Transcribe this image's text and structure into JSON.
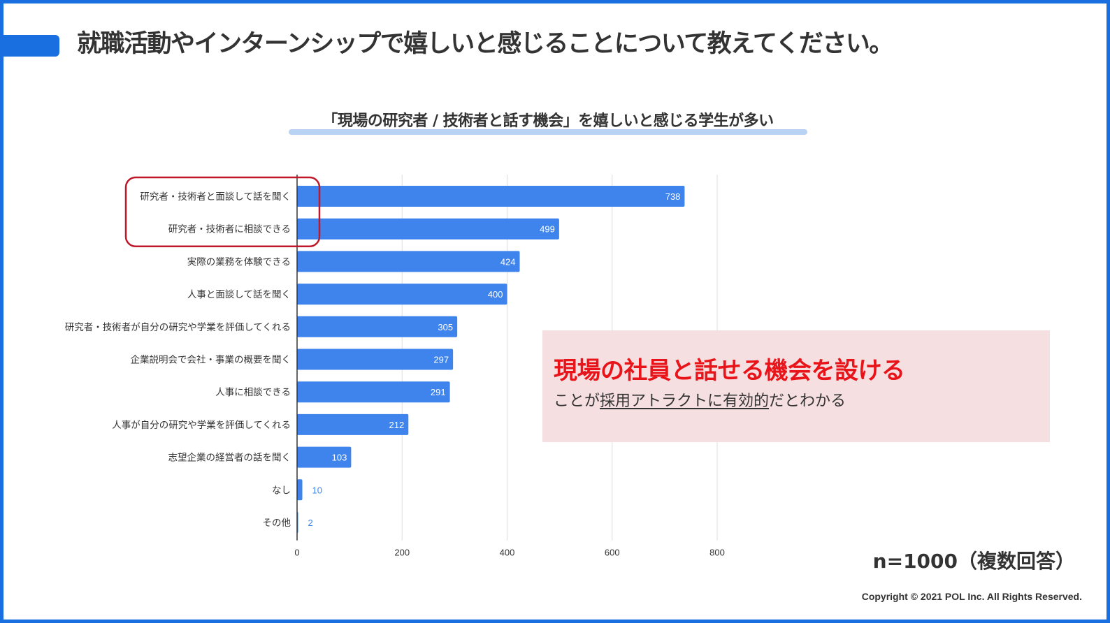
{
  "page": {
    "title": "就職活動やインターンシップで嬉しいと感じることについて教えてください。",
    "sample_size": "n=1000（複数回答）",
    "copyright": "Copyright © 2021 POL Inc. All Rights Reserved."
  },
  "callout": {
    "headline": "現場の社員と話せる機会を設ける",
    "sub_prefix": "ことが",
    "sub_underlined": "採用アトラクトに有効的",
    "sub_suffix": "だとわかる"
  },
  "colors": {
    "accent": "#1a6fe0",
    "bar": "#3f84ec",
    "highlight_box": "#c0182a",
    "callout_bg": "#f6dfe0",
    "callout_text": "#e8141a"
  },
  "chart_data": {
    "type": "bar",
    "orientation": "horizontal",
    "title": "「現場の研究者 / 技術者と話す機会」を嬉しいと感じる学生が多い",
    "categories": [
      "研究者・技術者と面談して話を聞く",
      "研究者・技術者に相談できる",
      "実際の業務を体験できる",
      "人事と面談して話を聞く",
      "研究者・技術者が自分の研究や学業を評価してくれる",
      "企業説明会で会社・事業の概要を聞く",
      "人事に相談できる",
      "人事が自分の研究や学業を評価してくれる",
      "志望企業の経営者の話を聞く",
      "なし",
      "その他"
    ],
    "values": [
      738,
      499,
      424,
      400,
      305,
      297,
      291,
      212,
      103,
      10,
      2
    ],
    "xlim": [
      0,
      800
    ],
    "xticks": [
      0,
      200,
      400,
      600,
      800
    ],
    "grid": true,
    "highlighted_categories": [
      0,
      1
    ],
    "xlabel": "",
    "ylabel": ""
  }
}
